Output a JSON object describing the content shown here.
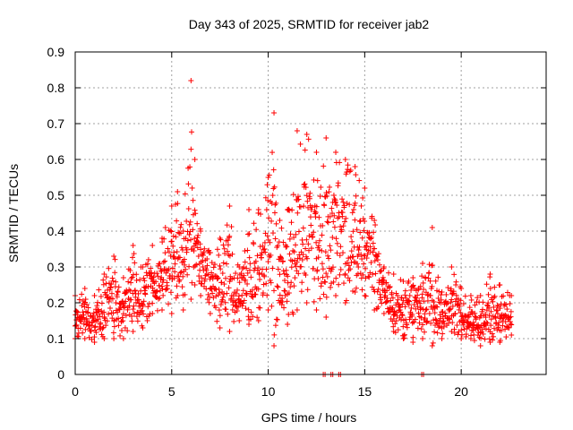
{
  "chart_data": {
    "type": "scatter",
    "title": "Day 343 of 2025, SRMTID for receiver jab2",
    "xlabel": "GPS time / hours",
    "ylabel": "SRMTID / TECUs",
    "xlim": [
      0,
      24.4
    ],
    "ylim": [
      0,
      0.9
    ],
    "x_ticks": [
      0,
      5,
      10,
      15,
      20
    ],
    "x_tick_labels": [
      "0",
      "5",
      "10",
      "15",
      "20"
    ],
    "y_ticks": [
      0,
      0.1,
      0.2,
      0.3,
      0.4,
      0.5,
      0.6,
      0.7,
      0.8,
      0.9
    ],
    "y_tick_labels": [
      "0",
      "0.1",
      "0.2",
      "0.3",
      "0.4",
      "0.5",
      "0.6",
      "0.7",
      "0.8",
      "0.9"
    ],
    "grid": true,
    "legend": "none",
    "series": [
      {
        "name": "SRMTID",
        "color": "#ff0000",
        "marker": "plus",
        "envelope": {
          "description": "dense cloud of plus markers; sampled envelope of the scattered values",
          "x": [
            0.0,
            0.5,
            1.0,
            1.5,
            2.0,
            2.5,
            3.0,
            3.5,
            4.0,
            4.5,
            5.0,
            5.3,
            5.6,
            6.0,
            6.2,
            6.5,
            7.0,
            7.5,
            8.0,
            8.5,
            9.0,
            9.5,
            10.0,
            10.3,
            10.6,
            11.0,
            11.5,
            12.0,
            12.5,
            13.0,
            13.5,
            14.0,
            14.5,
            15.0,
            15.5,
            16.0,
            16.5,
            17.0,
            17.5,
            18.0,
            18.5,
            19.0,
            19.5,
            20.0,
            20.5,
            21.0,
            21.5,
            22.0,
            22.6
          ],
          "y_low": [
            0.1,
            0.1,
            0.09,
            0.1,
            0.1,
            0.1,
            0.12,
            0.13,
            0.17,
            0.18,
            0.17,
            0.22,
            0.18,
            0.21,
            0.25,
            0.22,
            0.17,
            0.13,
            0.12,
            0.15,
            0.14,
            0.15,
            0.18,
            0.08,
            0.2,
            0.14,
            0.18,
            0.2,
            0.18,
            0.16,
            0.22,
            0.2,
            0.23,
            0.22,
            0.18,
            0.17,
            0.12,
            0.1,
            0.09,
            0.1,
            0.08,
            0.1,
            0.12,
            0.1,
            0.1,
            0.08,
            0.09,
            0.09,
            0.11
          ],
          "y_high": [
            0.22,
            0.24,
            0.22,
            0.28,
            0.33,
            0.27,
            0.36,
            0.3,
            0.36,
            0.38,
            0.47,
            0.51,
            0.4,
            0.82,
            0.6,
            0.4,
            0.34,
            0.38,
            0.47,
            0.3,
            0.46,
            0.46,
            0.55,
            0.73,
            0.43,
            0.46,
            0.68,
            0.67,
            0.62,
            0.66,
            0.62,
            0.6,
            0.58,
            0.52,
            0.43,
            0.3,
            0.28,
            0.26,
            0.27,
            0.31,
            0.41,
            0.23,
            0.3,
            0.24,
            0.22,
            0.22,
            0.28,
            0.25,
            0.22
          ]
        },
        "zero_markers_x": [
          12.9,
          13.3,
          13.7,
          18.0
        ]
      }
    ]
  }
}
